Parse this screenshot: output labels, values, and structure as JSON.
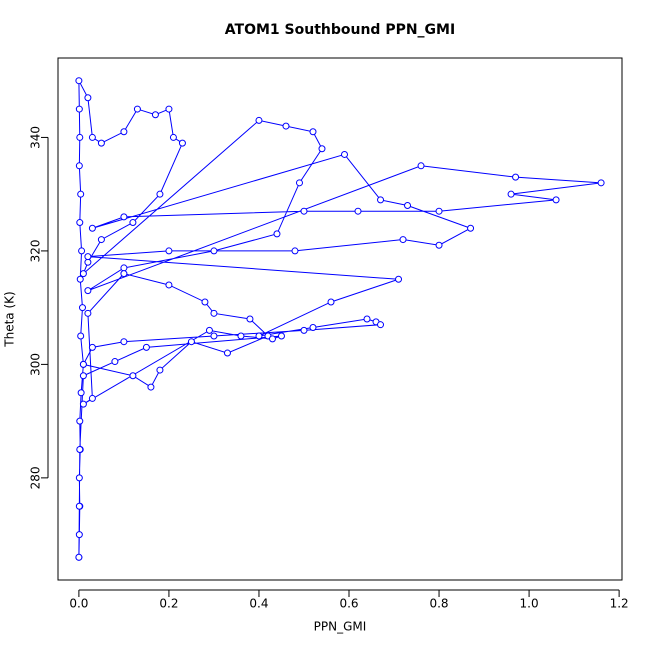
{
  "chart_data": {
    "type": "line",
    "title": "ATOM1 Southbound PPN_GMI",
    "x_label": "PPN_GMI",
    "y_label": "Theta (K)",
    "color": "#0000ff",
    "xlim": [
      -0.0464,
      1.2064
    ],
    "ylim": [
      262,
      354
    ],
    "xticks": [
      {
        "value": 0,
        "label": "0.0"
      },
      0.2,
      0.4,
      0.6,
      0.8,
      {
        "value": 1,
        "label": "1.0"
      },
      1.2
    ],
    "yticks": [
      280,
      300,
      320,
      340
    ],
    "x": [
      0,
      0.001,
      0.002,
      0.001,
      0.003,
      0.002,
      0.005,
      0.01,
      0.004,
      0.008,
      0.003,
      0.006,
      0.002,
      0.004,
      0.001,
      0.002,
      0.001,
      0,
      0.02,
      0.03,
      0.05,
      0.1,
      0.13,
      0.17,
      0.2,
      0.21,
      0.23,
      0.18,
      0.12,
      0.05,
      0.02,
      0.01,
      0.4,
      0.46,
      0.52,
      0.54,
      0.49,
      0.44,
      0.3,
      0.1,
      0.02,
      0.76,
      0.97,
      1.16,
      0.96,
      1.06,
      0.8,
      0.62,
      0.5,
      0.1,
      0.03,
      0.59,
      0.67,
      0.73,
      0.87,
      0.8,
      0.72,
      0.48,
      0.2,
      0.02,
      0.71,
      0.56,
      0.4,
      0.52,
      0.64,
      0.66,
      0.67,
      0.5,
      0.3,
      0.1,
      0.03,
      0.01,
      0.12,
      0.16,
      0.18,
      0.25,
      0.33,
      0.42,
      0.38,
      0.3,
      0.28,
      0.2,
      0.1,
      0.02,
      0.03,
      0.01,
      0.29,
      0.36,
      0.43,
      0.45,
      0.15,
      0.08,
      0.01,
      0.002,
      0.001,
      0
    ],
    "values": [
      266,
      270,
      275,
      280,
      285,
      290,
      295,
      300,
      305,
      310,
      315,
      320,
      325,
      330,
      335,
      340,
      345,
      350,
      347,
      340,
      339,
      341,
      345,
      344,
      345,
      340,
      339,
      330,
      325,
      322,
      318,
      316,
      343,
      342,
      341,
      338,
      332,
      323,
      320,
      317,
      313,
      335,
      333,
      332,
      330,
      329,
      327,
      327,
      327,
      326,
      324,
      337,
      329,
      328,
      324,
      321,
      322,
      320,
      320,
      319,
      315,
      311,
      305,
      306.5,
      308,
      307.5,
      307,
      306,
      305,
      304,
      303,
      300,
      298,
      296,
      299,
      304,
      302,
      305,
      308,
      309,
      311,
      314,
      316,
      309,
      294,
      293,
      306,
      305,
      304.5,
      305,
      303,
      300.5,
      298,
      285,
      275,
      266
    ]
  }
}
